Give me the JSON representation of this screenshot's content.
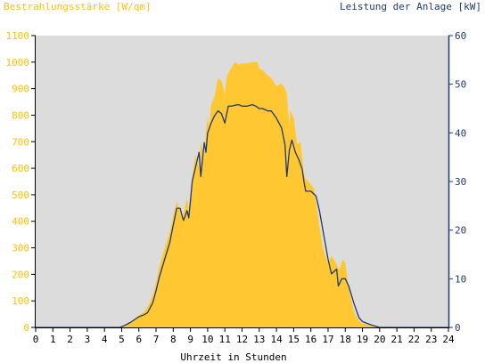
{
  "chart_data": {
    "type": "area",
    "left_axis_label": "Bestrahlungsstärke [W/qm]",
    "right_axis_label": "Leistung der Anlage [kW]",
    "xlabel": "Uhrzeit in Stunden",
    "xlim": [
      0,
      24
    ],
    "ylim_left": [
      0,
      1100
    ],
    "ylim_right": [
      0,
      60
    ],
    "x_ticks": [
      "0",
      "1",
      "2",
      "3",
      "4",
      "5",
      "6",
      "7",
      "8",
      "9",
      "10",
      "11",
      "12",
      "13",
      "14",
      "15",
      "16",
      "17",
      "18",
      "19",
      "20",
      "21",
      "22",
      "23",
      "24"
    ],
    "y_ticks_left": [
      "0",
      "100",
      "200",
      "300",
      "400",
      "500",
      "600",
      "700",
      "800",
      "900",
      "1000",
      "1100"
    ],
    "y_ticks_right": [
      "0",
      "10",
      "20",
      "30",
      "40",
      "50",
      "60"
    ],
    "grid": false,
    "colors": {
      "plot_background": "#dcdcdc",
      "irradiance": "#ffc832",
      "power": "#1e3a6e",
      "left_axis_text": "#ffc000",
      "right_axis_text": "#1e3a6e",
      "axis_text": "#000000"
    },
    "series": [
      {
        "name": "Bestrahlungsstärke [W/qm]",
        "axis": "left",
        "style": "area",
        "x": [
          0,
          4.8,
          5.1,
          5.5,
          6,
          6.3,
          6.5,
          6.8,
          7,
          7.2,
          7.5,
          7.8,
          8,
          8.2,
          8.4,
          8.55,
          8.6,
          8.8,
          8.9,
          9,
          9.1,
          9.3,
          9.5,
          9.6,
          9.8,
          9.9,
          10,
          10.1,
          10.2,
          10.4,
          10.6,
          10.8,
          11,
          11.1,
          11.2,
          11.4,
          11.6,
          11.8,
          12,
          12.3,
          12.6,
          12.9,
          13,
          13.2,
          13.5,
          13.7,
          14,
          14.3,
          14.5,
          14.6,
          14.75,
          14.8,
          15,
          15.2,
          15.4,
          15.6,
          15.7,
          16,
          16.2,
          16.5,
          16.7,
          17,
          17.2,
          17.5,
          17.6,
          17.7,
          17.8,
          17.9,
          18,
          18.2,
          18.5,
          18.8,
          19,
          19.5,
          20,
          20.1,
          24
        ],
        "y": [
          0,
          0,
          5,
          20,
          45,
          60,
          75,
          120,
          170,
          230,
          300,
          360,
          420,
          475,
          440,
          410,
          430,
          490,
          440,
          480,
          570,
          650,
          600,
          700,
          640,
          740,
          790,
          760,
          840,
          870,
          940,
          930,
          880,
          940,
          960,
          980,
          1000,
          990,
          995,
          995,
          1000,
          1000,
          975,
          970,
          950,
          940,
          910,
          920,
          900,
          880,
          760,
          820,
          790,
          690,
          700,
          580,
          560,
          540,
          520,
          380,
          300,
          240,
          270,
          240,
          220,
          225,
          250,
          255,
          240,
          150,
          60,
          25,
          15,
          8,
          3,
          0,
          0
        ]
      },
      {
        "name": "Leistung der Anlage [kW]",
        "axis": "right",
        "style": "line",
        "x": [
          0,
          4.9,
          5.1,
          5.5,
          6,
          6.3,
          6.5,
          6.8,
          7,
          7.2,
          7.5,
          7.8,
          8,
          8.2,
          8.4,
          8.55,
          8.6,
          8.8,
          8.9,
          9,
          9.1,
          9.3,
          9.5,
          9.6,
          9.8,
          9.9,
          10,
          10.2,
          10.4,
          10.6,
          10.8,
          11,
          11.2,
          11.4,
          11.6,
          11.8,
          12,
          12.3,
          12.6,
          12.8,
          13,
          13.2,
          13.5,
          13.7,
          14,
          14.3,
          14.5,
          14.6,
          14.75,
          14.9,
          15.1,
          15.3,
          15.5,
          15.6,
          15.7,
          16,
          16.3,
          16.5,
          16.7,
          17,
          17.2,
          17.5,
          17.6,
          17.8,
          18,
          18.2,
          18.5,
          18.8,
          19,
          19.3,
          19.6,
          20,
          20.2,
          24
        ],
        "y": [
          0,
          0,
          0.3,
          1,
          2.2,
          2.6,
          3,
          5,
          7.5,
          10.5,
          14,
          17.5,
          21,
          24.5,
          24.5,
          22.5,
          22,
          24,
          22.5,
          26,
          30,
          33,
          36,
          31,
          38,
          36,
          40,
          42,
          43.5,
          44.5,
          44,
          42,
          45.5,
          45.5,
          45.7,
          45.8,
          45.5,
          45.5,
          45.8,
          45.5,
          45,
          45,
          44.5,
          44.5,
          43,
          41,
          37.5,
          31,
          36.5,
          38.5,
          36,
          34.5,
          32.5,
          30,
          28,
          28,
          27,
          24,
          20,
          14,
          11,
          12,
          8.5,
          10,
          10,
          8.5,
          5,
          2,
          1.2,
          0.8,
          0.4,
          0,
          0,
          0
        ]
      }
    ]
  }
}
